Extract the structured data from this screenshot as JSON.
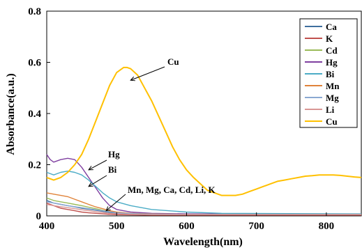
{
  "chart_data": {
    "type": "line",
    "xlabel": "Wavelength(nm)",
    "ylabel": "Absorbance(a.u.)",
    "xlim": [
      400,
      850
    ],
    "ylim": [
      0,
      0.8
    ],
    "x_ticks": [
      "400",
      "500",
      "600",
      "700",
      "800"
    ],
    "y_ticks": [
      "0",
      "0.2",
      "0.4",
      "0.6",
      "0.8"
    ],
    "grid": false,
    "legend_position": "top-right",
    "series": [
      {
        "name": "Ca",
        "color": "#3f6f9e",
        "x": [
          400,
          410,
          420,
          430,
          440,
          450,
          460,
          470,
          480,
          490,
          500,
          520,
          550,
          600,
          850
        ],
        "y": [
          0.06,
          0.05,
          0.045,
          0.04,
          0.035,
          0.03,
          0.026,
          0.022,
          0.018,
          0.014,
          0.01,
          0.008,
          0.006,
          0.005,
          0.005
        ]
      },
      {
        "name": "K",
        "color": "#c0504d",
        "x": [
          400,
          410,
          420,
          430,
          440,
          450,
          460,
          470,
          480,
          490,
          500,
          520,
          550,
          600,
          850
        ],
        "y": [
          0.05,
          0.04,
          0.03,
          0.025,
          0.02,
          0.015,
          0.012,
          0.01,
          0.008,
          0.006,
          0.005,
          0.004,
          0.003,
          0.003,
          0.003
        ]
      },
      {
        "name": "Cd",
        "color": "#9bbb59",
        "x": [
          400,
          410,
          420,
          430,
          440,
          450,
          460,
          470,
          480,
          490,
          500,
          520,
          550,
          600,
          850
        ],
        "y": [
          0.07,
          0.06,
          0.055,
          0.05,
          0.045,
          0.04,
          0.034,
          0.028,
          0.022,
          0.017,
          0.013,
          0.009,
          0.007,
          0.006,
          0.006
        ]
      },
      {
        "name": "Hg",
        "color": "#7f3fa0",
        "x": [
          400,
          405,
          410,
          420,
          430,
          440,
          450,
          460,
          470,
          480,
          490,
          500,
          520,
          550,
          600,
          850
        ],
        "y": [
          0.24,
          0.22,
          0.21,
          0.22,
          0.225,
          0.22,
          0.19,
          0.15,
          0.11,
          0.07,
          0.04,
          0.025,
          0.015,
          0.01,
          0.008,
          0.007
        ]
      },
      {
        "name": "Bi",
        "color": "#4bacc6",
        "x": [
          400,
          410,
          420,
          430,
          440,
          450,
          460,
          470,
          480,
          490,
          500,
          520,
          550,
          600,
          650,
          850
        ],
        "y": [
          0.17,
          0.16,
          0.17,
          0.175,
          0.17,
          0.16,
          0.14,
          0.115,
          0.09,
          0.07,
          0.055,
          0.04,
          0.025,
          0.015,
          0.01,
          0.008
        ]
      },
      {
        "name": "Mn",
        "color": "#e0833a",
        "x": [
          400,
          410,
          420,
          430,
          440,
          450,
          460,
          470,
          480,
          490,
          500,
          520,
          550,
          600,
          850
        ],
        "y": [
          0.09,
          0.085,
          0.08,
          0.075,
          0.065,
          0.055,
          0.045,
          0.035,
          0.028,
          0.02,
          0.015,
          0.01,
          0.008,
          0.006,
          0.006
        ]
      },
      {
        "name": "Mg",
        "color": "#8aa8d2",
        "x": [
          400,
          410,
          420,
          430,
          440,
          450,
          460,
          470,
          480,
          490,
          500,
          520,
          550,
          600,
          850
        ],
        "y": [
          0.055,
          0.05,
          0.045,
          0.04,
          0.036,
          0.032,
          0.028,
          0.024,
          0.02,
          0.016,
          0.012,
          0.009,
          0.007,
          0.006,
          0.006
        ]
      },
      {
        "name": "Li",
        "color": "#d99694",
        "x": [
          400,
          410,
          420,
          430,
          440,
          450,
          460,
          470,
          480,
          490,
          500,
          520,
          550,
          600,
          850
        ],
        "y": [
          0.045,
          0.04,
          0.036,
          0.032,
          0.028,
          0.024,
          0.02,
          0.016,
          0.013,
          0.01,
          0.008,
          0.006,
          0.005,
          0.005,
          0.005
        ]
      },
      {
        "name": "Cu",
        "color": "#ffc000",
        "x": [
          400,
          410,
          420,
          430,
          440,
          450,
          460,
          470,
          480,
          490,
          500,
          510,
          515,
          520,
          530,
          540,
          550,
          560,
          570,
          580,
          590,
          600,
          610,
          620,
          630,
          640,
          650,
          660,
          670,
          680,
          690,
          700,
          710,
          720,
          730,
          740,
          750,
          760,
          770,
          780,
          790,
          800,
          810,
          820,
          830,
          840,
          850
        ],
        "y": [
          0.15,
          0.14,
          0.15,
          0.17,
          0.2,
          0.24,
          0.3,
          0.37,
          0.44,
          0.51,
          0.56,
          0.58,
          0.58,
          0.575,
          0.55,
          0.5,
          0.45,
          0.39,
          0.33,
          0.27,
          0.22,
          0.18,
          0.15,
          0.125,
          0.1,
          0.09,
          0.08,
          0.08,
          0.08,
          0.085,
          0.095,
          0.105,
          0.115,
          0.125,
          0.135,
          0.14,
          0.145,
          0.15,
          0.155,
          0.157,
          0.16,
          0.16,
          0.16,
          0.158,
          0.155,
          0.152,
          0.15
        ]
      }
    ],
    "annotations": [
      {
        "text": "Cu",
        "arrow_to": [
          520,
          0.53
        ]
      },
      {
        "text": "Hg",
        "arrow_to": [
          460,
          0.18
        ]
      },
      {
        "text": "Bi",
        "arrow_to": [
          460,
          0.115
        ]
      },
      {
        "text": "Mn, Mg, Ca, Cd, Li, K",
        "arrow_to": [
          485,
          0.02
        ]
      }
    ]
  }
}
